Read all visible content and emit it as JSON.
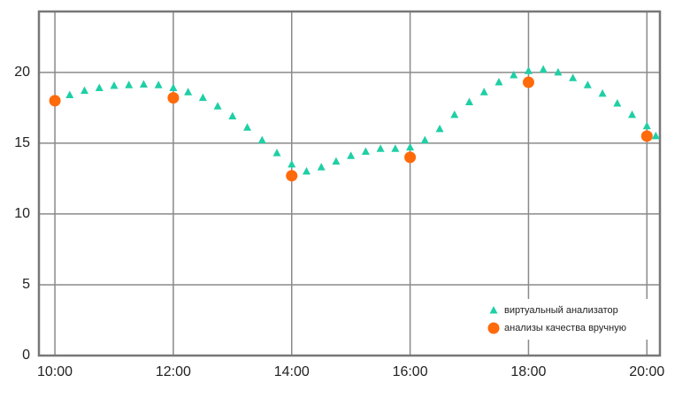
{
  "chart_data": {
    "type": "line",
    "xlim": [
      9.73,
      20.22
    ],
    "xticks": [
      {
        "value": 10,
        "label": "10:00"
      },
      {
        "value": 12,
        "label": "12:00"
      },
      {
        "value": 14,
        "label": "14:00"
      },
      {
        "value": 16,
        "label": "16:00"
      },
      {
        "value": 18,
        "label": "18:00"
      },
      {
        "value": 20,
        "label": "20:00"
      }
    ],
    "ylim": [
      0,
      24.3
    ],
    "yticks": [
      0,
      5,
      10,
      15,
      20
    ],
    "grid": true,
    "legend": "bottom-right",
    "series": [
      {
        "name": "виртуальный анализатор",
        "type": "line",
        "marker": "triangle",
        "color": "#1fcfa5",
        "x": [
          10,
          10.25,
          10.5,
          10.75,
          11,
          11.25,
          11.5,
          11.75,
          12,
          12.25,
          12.5,
          12.75,
          13,
          13.25,
          13.5,
          13.75,
          14,
          14.25,
          14.5,
          14.75,
          15,
          15.25,
          15.5,
          15.75,
          16,
          16.25,
          16.5,
          16.75,
          17,
          17.25,
          17.5,
          17.75,
          18,
          18.25,
          18.5,
          18.75,
          19,
          19.25,
          19.5,
          19.75,
          20,
          20.15
        ],
        "values": [
          18.0,
          18.4,
          18.7,
          18.9,
          19.05,
          19.1,
          19.15,
          19.1,
          18.9,
          18.6,
          18.2,
          17.6,
          16.9,
          16.1,
          15.2,
          14.3,
          13.5,
          13.0,
          13.3,
          13.7,
          14.1,
          14.4,
          14.6,
          14.6,
          14.7,
          15.2,
          16.0,
          17.0,
          17.9,
          18.6,
          19.3,
          19.8,
          20.1,
          20.2,
          20.0,
          19.6,
          19.1,
          18.5,
          17.8,
          17.0,
          16.2,
          15.5
        ]
      },
      {
        "name": "анализы качества вручную",
        "type": "scatter",
        "marker": "circle",
        "color": "#ff6a0a",
        "x": [
          10,
          12,
          14,
          16,
          18,
          20
        ],
        "values": [
          18.0,
          18.2,
          12.7,
          14.0,
          19.3,
          15.5
        ]
      }
    ]
  }
}
